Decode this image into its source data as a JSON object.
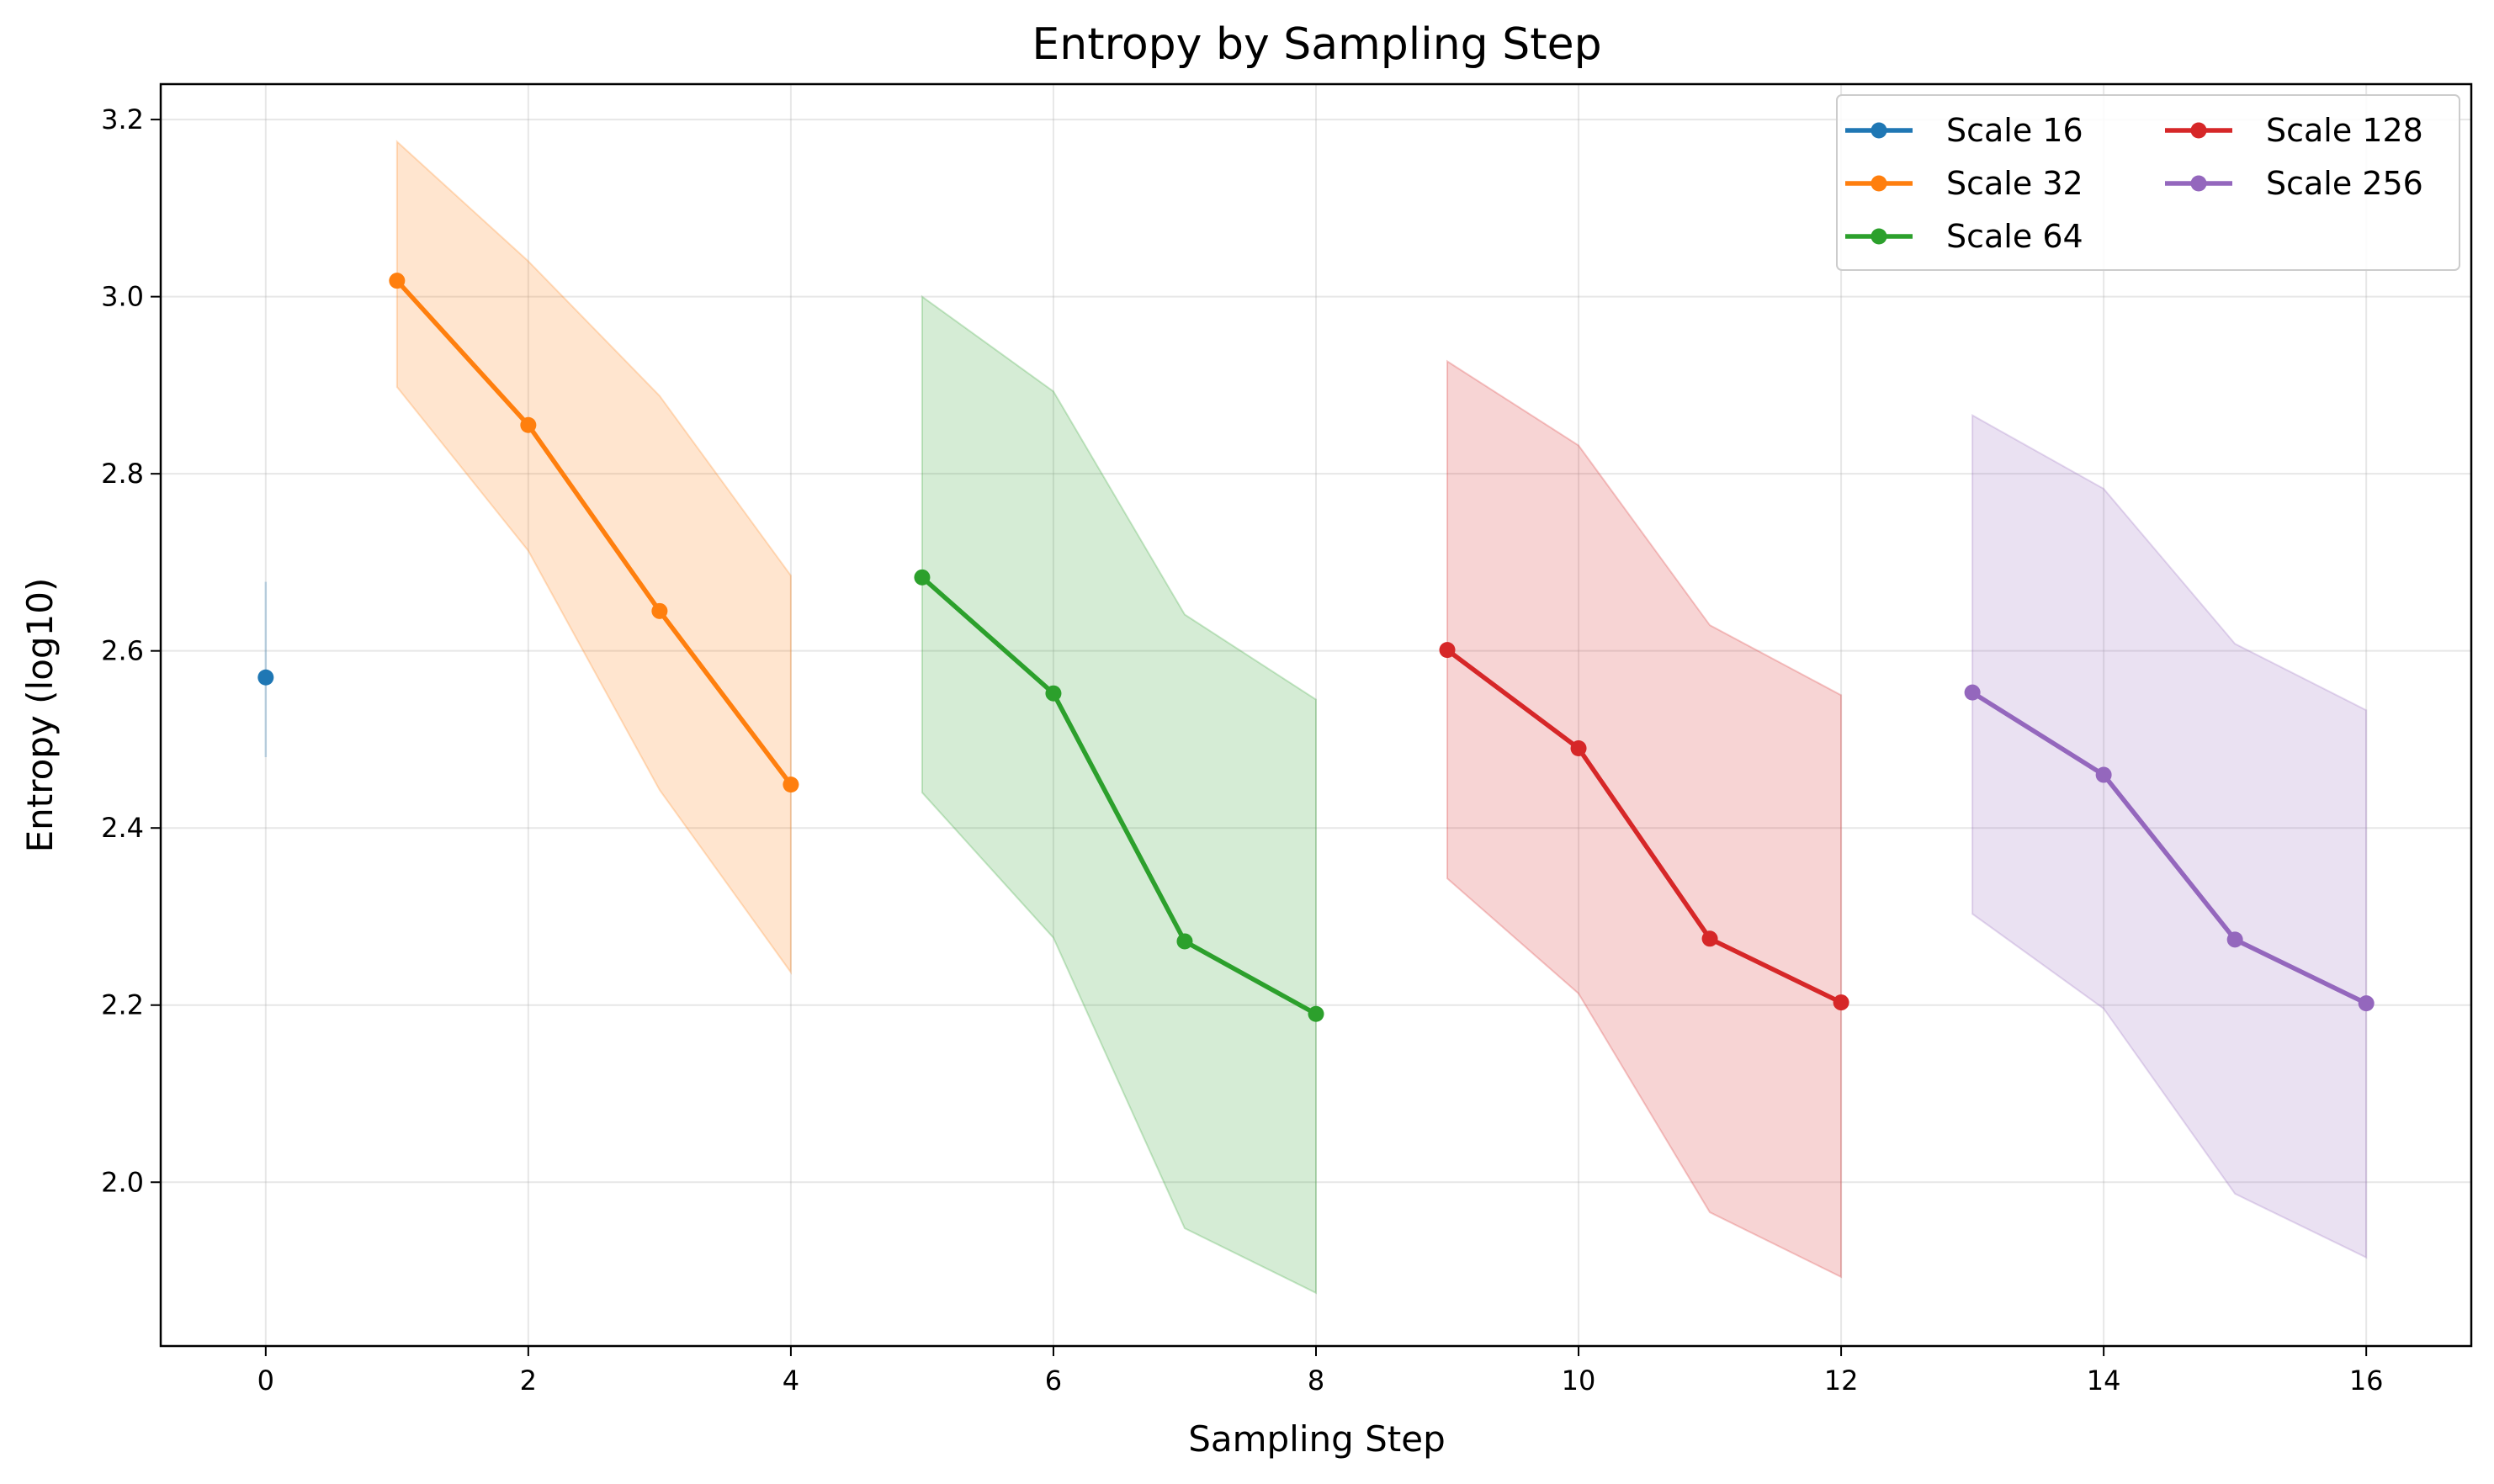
{
  "chart_data": {
    "type": "line",
    "title": "Entropy by Sampling Step",
    "xlabel": "Sampling Step",
    "ylabel": "Entropy (log10)",
    "xlim": [
      -0.8,
      16.8
    ],
    "ylim": [
      1.815,
      3.24
    ],
    "xticks": [
      0,
      2,
      4,
      6,
      8,
      10,
      12,
      14,
      16
    ],
    "yticks": [
      2.0,
      2.2,
      2.4,
      2.6,
      2.8,
      3.0,
      3.2
    ],
    "ytick_labels": [
      "2.0",
      "2.2",
      "2.4",
      "2.6",
      "2.8",
      "3.0",
      "3.2"
    ],
    "grid": true,
    "legend_position": "top-right",
    "legend_columns": 2,
    "series": [
      {
        "name": "Scale 16",
        "color": "#1f77b4",
        "x": [
          0
        ],
        "values": [
          2.57
        ],
        "lower": [
          2.48
        ],
        "upper": [
          2.678
        ]
      },
      {
        "name": "Scale 32",
        "color": "#ff7f0e",
        "x": [
          1,
          2,
          3,
          4
        ],
        "values": [
          3.018,
          2.855,
          2.645,
          2.449
        ],
        "lower": [
          2.898,
          2.713,
          2.443,
          2.237
        ],
        "upper": [
          3.175,
          3.04,
          2.888,
          2.685
        ]
      },
      {
        "name": "Scale 64",
        "color": "#2ca02c",
        "x": [
          5,
          6,
          7,
          8
        ],
        "values": [
          2.683,
          2.552,
          2.272,
          2.19
        ],
        "lower": [
          2.44,
          2.276,
          1.948,
          1.875
        ],
        "upper": [
          3.0,
          2.893,
          2.641,
          2.545
        ]
      },
      {
        "name": "Scale 128",
        "color": "#d62728",
        "x": [
          9,
          10,
          11,
          12
        ],
        "values": [
          2.601,
          2.49,
          2.275,
          2.203
        ],
        "lower": [
          2.343,
          2.213,
          1.966,
          1.893
        ],
        "upper": [
          2.927,
          2.832,
          2.629,
          2.55
        ]
      },
      {
        "name": "Scale 256",
        "color": "#9467bd",
        "x": [
          13,
          14,
          15,
          16
        ],
        "values": [
          2.553,
          2.46,
          2.274,
          2.202
        ],
        "lower": [
          2.303,
          2.196,
          1.987,
          1.915
        ],
        "upper": [
          2.866,
          2.783,
          2.608,
          2.533
        ]
      }
    ]
  }
}
